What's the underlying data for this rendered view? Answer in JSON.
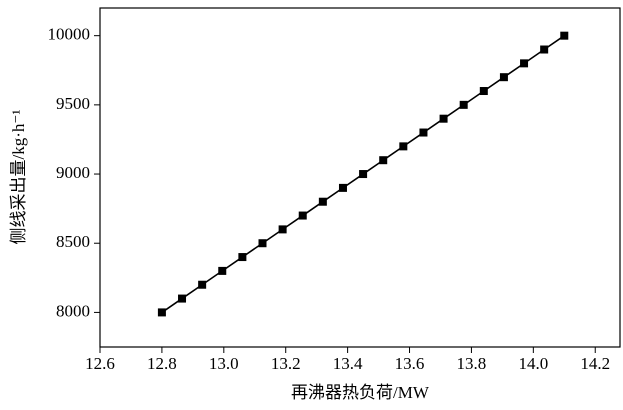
{
  "chart_data": {
    "type": "line",
    "xlabel": "再沸器热负荷/MW",
    "ylabel": "侧线采出量/kg·h⁻¹",
    "x": [
      12.8,
      12.865,
      12.93,
      12.995,
      13.06,
      13.125,
      13.19,
      13.255,
      13.32,
      13.385,
      13.45,
      13.515,
      13.58,
      13.645,
      13.71,
      13.775,
      13.84,
      13.905,
      13.97,
      14.035,
      14.1
    ],
    "series": [
      {
        "color": "#000000",
        "values": [
          8000,
          8100,
          8200,
          8300,
          8400,
          8500,
          8600,
          8700,
          8800,
          8900,
          9000,
          9100,
          9200,
          9300,
          9400,
          9500,
          9600,
          9700,
          9800,
          9900,
          10000
        ]
      }
    ],
    "xlim": [
      12.6,
      14.28
    ],
    "xticks": [
      12.6,
      12.8,
      {
        "value": 13,
        "label": "13.0"
      },
      13.2,
      13.4,
      13.6,
      13.8,
      {
        "value": 14,
        "label": "14.0"
      },
      14.2
    ],
    "ylim": [
      7750,
      10200
    ],
    "yticks": [
      8000,
      8500,
      9000,
      9500,
      10000
    ],
    "marker": "square"
  }
}
